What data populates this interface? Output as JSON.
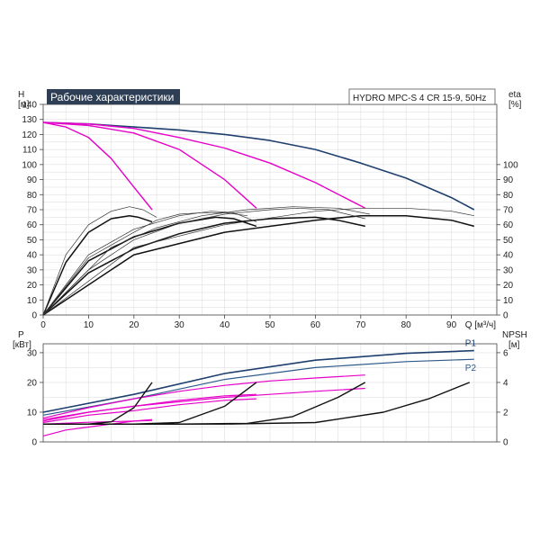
{
  "header": {
    "title": "Рабочие характеристики",
    "model": "HYDRO MPC-S 4 CR 15-9, 50Hz"
  },
  "colors": {
    "title_bg": "#2e3f55",
    "system_curve": "#1f3f6e",
    "head_curve": "#e600c8",
    "eff_curve": "#111111",
    "grid": "#e0e0e0"
  },
  "chart_data": [
    {
      "type": "line",
      "name": "head-efficiency",
      "left_axis": {
        "title_line1": "H",
        "title_line2": "[м]",
        "ylim": [
          0,
          140
        ],
        "ticks": [
          0,
          10,
          20,
          30,
          40,
          50,
          60,
          70,
          80,
          90,
          100,
          110,
          120,
          130,
          140
        ]
      },
      "right_axis": {
        "title_line1": "eta",
        "title_line2": "[%]",
        "ylim": [
          0,
          140
        ],
        "ticks": [
          0,
          10,
          20,
          30,
          40,
          50,
          60,
          70,
          80,
          90,
          100
        ]
      },
      "x_axis": {
        "title": "Q [м³/ч]",
        "xlim": [
          0,
          100
        ],
        "ticks": [
          0,
          10,
          20,
          30,
          40,
          50,
          60,
          70,
          80,
          90
        ]
      },
      "grid": true,
      "series": [
        {
          "role": "head-system",
          "points": [
            [
              0,
              128
            ],
            [
              10,
              127
            ],
            [
              20,
              125
            ],
            [
              30,
              123
            ],
            [
              40,
              120
            ],
            [
              50,
              116
            ],
            [
              60,
              110
            ],
            [
              70,
              101
            ],
            [
              80,
              91
            ],
            [
              90,
              78
            ],
            [
              95,
              70
            ]
          ]
        },
        {
          "role": "head-pump",
          "points": [
            [
              0,
              128
            ],
            [
              5,
              125
            ],
            [
              10,
              118
            ],
            [
              15,
              104
            ],
            [
              20,
              85
            ],
            [
              24,
              70
            ]
          ]
        },
        {
          "role": "head-pump",
          "points": [
            [
              0,
              128
            ],
            [
              10,
              126
            ],
            [
              20,
              121
            ],
            [
              30,
              110
            ],
            [
              40,
              90
            ],
            [
              47,
              71
            ]
          ]
        },
        {
          "role": "head-pump",
          "points": [
            [
              0,
              128
            ],
            [
              10,
              127
            ],
            [
              20,
              124
            ],
            [
              30,
              118
            ],
            [
              40,
              111
            ],
            [
              50,
              101
            ],
            [
              60,
              88
            ],
            [
              71,
              71
            ]
          ]
        },
        {
          "role": "eff",
          "points": [
            [
              0,
              0
            ],
            [
              5,
              35
            ],
            [
              10,
              55
            ],
            [
              15,
              64
            ],
            [
              19,
              66
            ],
            [
              21,
              65
            ],
            [
              24,
              62
            ]
          ]
        },
        {
          "role": "eff",
          "points": [
            [
              0,
              0
            ],
            [
              10,
              36
            ],
            [
              20,
              52
            ],
            [
              30,
              61
            ],
            [
              38,
              65
            ],
            [
              42,
              64
            ],
            [
              47,
              59
            ]
          ]
        },
        {
          "role": "eff",
          "points": [
            [
              0,
              0
            ],
            [
              10,
              28
            ],
            [
              20,
              44
            ],
            [
              30,
              54
            ],
            [
              40,
              61
            ],
            [
              50,
              64
            ],
            [
              60,
              65
            ],
            [
              65,
              63
            ],
            [
              71,
              59
            ]
          ]
        },
        {
          "role": "eff",
          "points": [
            [
              0,
              0
            ],
            [
              20,
              40
            ],
            [
              40,
              55
            ],
            [
              60,
              63
            ],
            [
              70,
              66
            ],
            [
              80,
              66
            ],
            [
              90,
              63
            ],
            [
              95,
              59
            ]
          ]
        },
        {
          "role": "eff-thin",
          "points": [
            [
              0,
              0
            ],
            [
              5,
              40
            ],
            [
              10,
              60
            ],
            [
              15,
              69
            ],
            [
              19,
              72
            ],
            [
              22,
              70
            ],
            [
              25,
              65
            ]
          ]
        },
        {
          "role": "eff-thin",
          "points": [
            [
              0,
              0
            ],
            [
              10,
              40
            ],
            [
              20,
              57
            ],
            [
              30,
              66
            ],
            [
              37,
              69
            ],
            [
              42,
              68
            ],
            [
              47,
              62
            ]
          ]
        },
        {
          "role": "eff-thin",
          "points": [
            [
              0,
              0
            ],
            [
              10,
              30
            ],
            [
              20,
              50
            ],
            [
              30,
              61
            ],
            [
              40,
              67
            ],
            [
              50,
              70
            ],
            [
              56,
              71
            ],
            [
              63,
              70
            ],
            [
              71,
              64
            ]
          ]
        },
        {
          "role": "eff-thin",
          "points": [
            [
              0,
              0
            ],
            [
              20,
              45
            ],
            [
              40,
              60
            ],
            [
              60,
              69
            ],
            [
              70,
              71
            ],
            [
              80,
              71
            ],
            [
              90,
              69
            ],
            [
              95,
              66
            ]
          ]
        },
        {
          "role": "eff-thin",
          "points": [
            [
              0,
              0
            ],
            [
              10,
              38
            ],
            [
              20,
              55
            ],
            [
              25,
              63
            ],
            [
              30,
              67
            ],
            [
              35,
              68
            ],
            [
              40,
              68
            ],
            [
              45,
              66
            ]
          ]
        },
        {
          "role": "eff-thin",
          "points": [
            [
              0,
              0
            ],
            [
              15,
              45
            ],
            [
              25,
              58
            ],
            [
              35,
              66
            ],
            [
              45,
              70
            ],
            [
              55,
              72
            ],
            [
              65,
              71
            ],
            [
              72,
              67
            ]
          ]
        }
      ]
    },
    {
      "type": "line",
      "name": "power-npsh",
      "left_axis": {
        "title_line1": "P",
        "title_line2": "[кВт]",
        "ylim": [
          0,
          33
        ],
        "ticks": [
          0,
          10,
          20,
          30
        ]
      },
      "right_axis": {
        "title_line1": "NPSH",
        "title_line2": "[м]",
        "ylim": [
          0,
          6.6
        ],
        "ticks": [
          0,
          2,
          4,
          6
        ]
      },
      "x_axis": {
        "xlim": [
          0,
          100
        ]
      },
      "labels": {
        "p1": "P1",
        "p2": "P2"
      },
      "grid": true,
      "series": [
        {
          "role": "p1",
          "points": [
            [
              0,
              10
            ],
            [
              20,
              16
            ],
            [
              40,
              23
            ],
            [
              60,
              27.5
            ],
            [
              80,
              29.8
            ],
            [
              95,
              30.7
            ]
          ]
        },
        {
          "role": "p2",
          "points": [
            [
              0,
              9
            ],
            [
              20,
              14.5
            ],
            [
              40,
              21
            ],
            [
              60,
              25
            ],
            [
              80,
              27
            ],
            [
              95,
              27.8
            ]
          ]
        },
        {
          "role": "power-pump",
          "points": [
            [
              0,
              8
            ],
            [
              10,
              11.5
            ],
            [
              20,
              14.5
            ],
            [
              30,
              17
            ],
            [
              40,
              19
            ],
            [
              50,
              20.5
            ],
            [
              60,
              21.5
            ],
            [
              71,
              22.5
            ]
          ]
        },
        {
          "role": "power-pump",
          "points": [
            [
              0,
              7
            ],
            [
              10,
              10
            ],
            [
              20,
              12
            ],
            [
              30,
              14
            ],
            [
              40,
              15.5
            ],
            [
              47,
              16
            ]
          ]
        },
        {
          "role": "power-pump",
          "points": [
            [
              0,
              6.5
            ],
            [
              10,
              9
            ],
            [
              20,
              10.5
            ],
            [
              30,
              12.5
            ],
            [
              40,
              14
            ],
            [
              47,
              14.5
            ]
          ]
        },
        {
          "role": "power-pump",
          "points": [
            [
              0,
              2
            ],
            [
              5,
              4
            ],
            [
              10,
              5
            ],
            [
              15,
              6
            ],
            [
              20,
              7
            ],
            [
              24,
              7.5
            ]
          ]
        },
        {
          "role": "power-pump",
          "points": [
            [
              0,
              6
            ],
            [
              10,
              6.6
            ],
            [
              20,
              7
            ],
            [
              24,
              7.2
            ]
          ]
        },
        {
          "role": "power-pump",
          "points": [
            [
              0,
              7.5
            ],
            [
              10,
              10
            ],
            [
              20,
              12
            ],
            [
              30,
              13.5
            ],
            [
              40,
              15
            ],
            [
              50,
              16
            ],
            [
              60,
              17
            ],
            [
              71,
              18
            ]
          ]
        },
        {
          "role": "npsh",
          "points": [
            [
              0,
              1.2
            ],
            [
              10,
              1.2
            ],
            [
              15,
              1.35
            ],
            [
              20,
              2.3
            ],
            [
              24,
              4
            ]
          ]
        },
        {
          "role": "npsh",
          "points": [
            [
              0,
              1.2
            ],
            [
              20,
              1.2
            ],
            [
              30,
              1.3
            ],
            [
              40,
              2.4
            ],
            [
              47,
              4
            ]
          ]
        },
        {
          "role": "npsh",
          "points": [
            [
              0,
              1.2
            ],
            [
              30,
              1.2
            ],
            [
              45,
              1.25
            ],
            [
              55,
              1.7
            ],
            [
              65,
              3
            ],
            [
              71,
              4
            ]
          ]
        },
        {
          "role": "npsh",
          "points": [
            [
              0,
              1.2
            ],
            [
              40,
              1.2
            ],
            [
              60,
              1.3
            ],
            [
              75,
              2
            ],
            [
              85,
              2.9
            ],
            [
              94,
              4
            ]
          ]
        }
      ]
    }
  ]
}
